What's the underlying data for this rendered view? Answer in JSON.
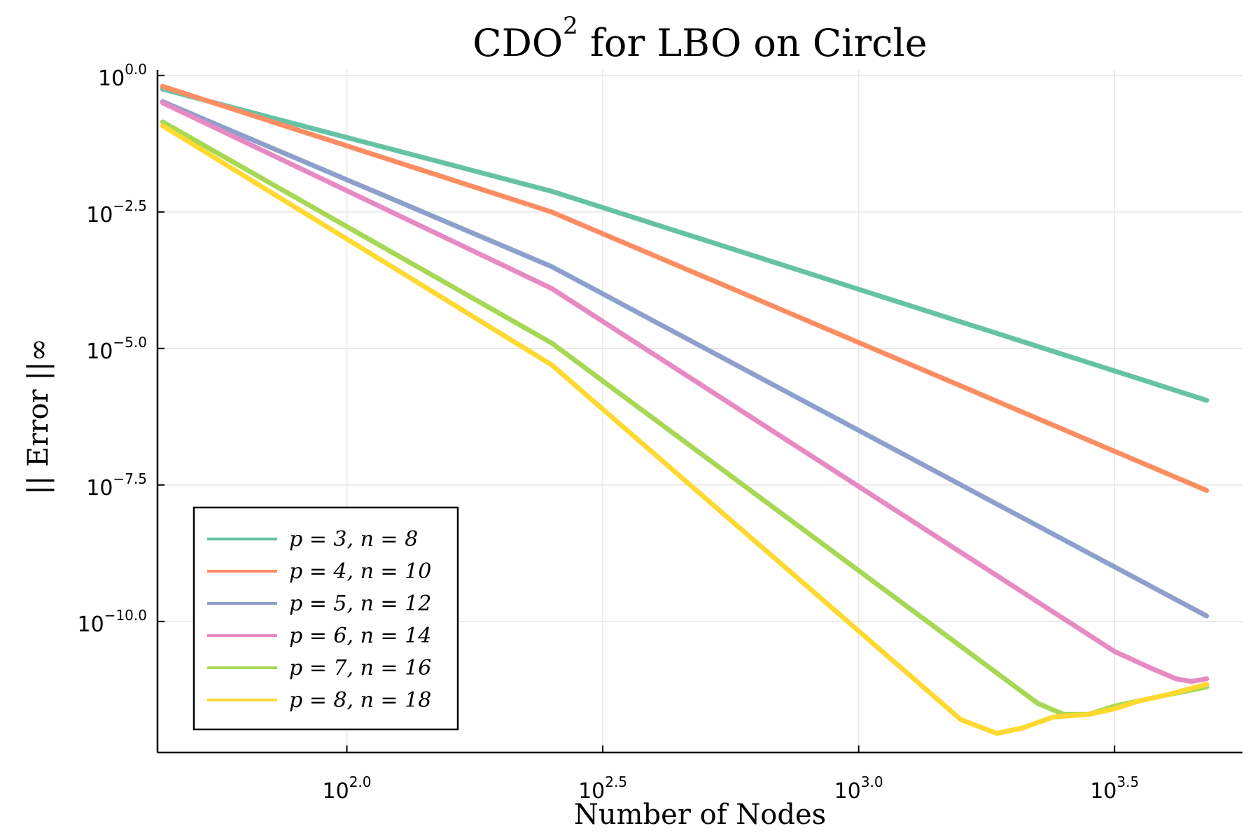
{
  "chart_data": {
    "type": "line",
    "title": {
      "main": "CDO",
      "superscript": "2",
      "rest": " for LBO on Circle"
    },
    "xlabel": "Number of Nodes",
    "ylabel": "|| Error ||∞",
    "xscale": "log10",
    "yscale": "log10",
    "xlim_log10": [
      1.63,
      3.75
    ],
    "ylim_log10": [
      -12.4,
      0.1
    ],
    "x_ticks": [
      {
        "base": "10",
        "exp": "2.0",
        "log": 2.0
      },
      {
        "base": "10",
        "exp": "2.5",
        "log": 2.5
      },
      {
        "base": "10",
        "exp": "3.0",
        "log": 3.0
      },
      {
        "base": "10",
        "exp": "3.5",
        "log": 3.5
      }
    ],
    "y_ticks": [
      {
        "base": "10",
        "exp": "0.0",
        "log": 0.0
      },
      {
        "base": "10",
        "exp": "−2.5",
        "log": -2.5
      },
      {
        "base": "10",
        "exp": "−5.0",
        "log": -5.0
      },
      {
        "base": "10",
        "exp": "−7.5",
        "log": -7.5
      },
      {
        "base": "10",
        "exp": "−10.0",
        "log": -10.0
      }
    ],
    "grid": true,
    "legend_position": "bottom-left",
    "series": [
      {
        "name": "p = 3, n = 8",
        "color": "#66c2a5",
        "points_log10": [
          [
            1.64,
            -0.25
          ],
          [
            2.4,
            -2.12
          ],
          [
            3.68,
            -5.95
          ]
        ]
      },
      {
        "name": "p = 4, n = 10",
        "color": "#fc8d62",
        "points_log10": [
          [
            1.64,
            -0.2
          ],
          [
            2.4,
            -2.5
          ],
          [
            3.68,
            -7.6
          ]
        ]
      },
      {
        "name": "p = 5, n = 12",
        "color": "#8da0cb",
        "points_log10": [
          [
            1.64,
            -0.48
          ],
          [
            2.4,
            -3.5
          ],
          [
            3.68,
            -9.9
          ]
        ]
      },
      {
        "name": "p = 6, n = 14",
        "color": "#e78ac3",
        "points_log10": [
          [
            1.64,
            -0.5
          ],
          [
            2.4,
            -3.9
          ],
          [
            3.5,
            -10.55
          ],
          [
            3.57,
            -10.85
          ],
          [
            3.62,
            -11.05
          ],
          [
            3.65,
            -11.1
          ],
          [
            3.68,
            -11.05
          ]
        ]
      },
      {
        "name": "p = 7, n = 16",
        "color": "#a6d854",
        "points_log10": [
          [
            1.64,
            -0.85
          ],
          [
            2.4,
            -4.9
          ],
          [
            3.35,
            -11.5
          ],
          [
            3.4,
            -11.7
          ],
          [
            3.45,
            -11.7
          ],
          [
            3.5,
            -11.55
          ],
          [
            3.55,
            -11.45
          ],
          [
            3.6,
            -11.35
          ],
          [
            3.68,
            -11.2
          ]
        ]
      },
      {
        "name": "p = 8, n = 18",
        "color": "#ffd92f",
        "points_log10": [
          [
            1.64,
            -0.92
          ],
          [
            2.4,
            -5.3
          ],
          [
            3.2,
            -11.8
          ],
          [
            3.27,
            -12.05
          ],
          [
            3.32,
            -11.95
          ],
          [
            3.38,
            -11.75
          ],
          [
            3.45,
            -11.7
          ],
          [
            3.5,
            -11.6
          ],
          [
            3.55,
            -11.45
          ],
          [
            3.6,
            -11.35
          ],
          [
            3.68,
            -11.15
          ]
        ]
      }
    ]
  }
}
